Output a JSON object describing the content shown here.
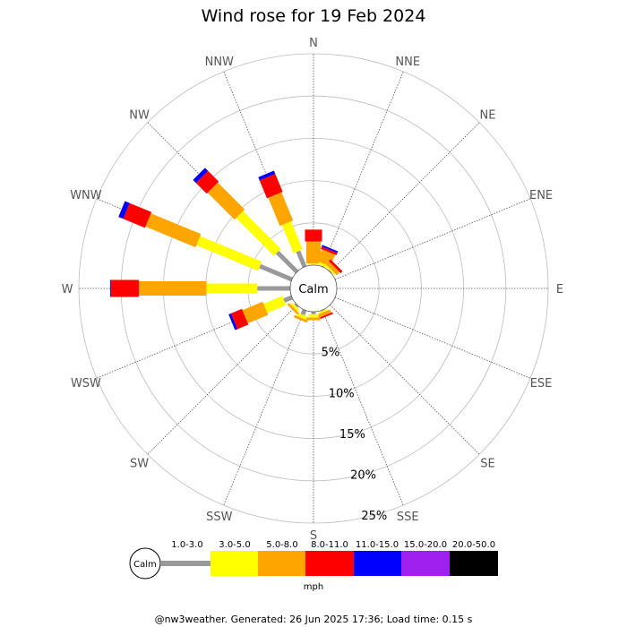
{
  "chart_data": {
    "type": "wind-rose",
    "title": "Wind rose for 19 Feb 2024",
    "center_label": "Calm",
    "directions": [
      "N",
      "NNE",
      "NE",
      "ENE",
      "E",
      "ESE",
      "SE",
      "SSE",
      "S",
      "SSW",
      "SW",
      "WSW",
      "W",
      "WNW",
      "NW",
      "NNW"
    ],
    "ring_labels": [
      "5%",
      "10%",
      "15%",
      "20%",
      "25%"
    ],
    "ring_values": [
      5,
      10,
      15,
      20,
      25
    ],
    "radial_max": 25,
    "speed_bins": [
      {
        "label": "1.0-3.0",
        "color": "#999999"
      },
      {
        "label": "3.0-5.0",
        "color": "#ffff00"
      },
      {
        "label": "5.0-8.0",
        "color": "#ffa500"
      },
      {
        "label": "8.0-11.0",
        "color": "#ff0000"
      },
      {
        "label": "11.0-15.0",
        "color": "#0000ff"
      },
      {
        "label": "15.0-20.0",
        "color": "#a020f0"
      },
      {
        "label": "20.0-50.0",
        "color": "#000000"
      }
    ],
    "unit": "mph",
    "series": [
      {
        "direction": "N",
        "values": [
          0.0,
          0.2,
          2.6,
          1.4,
          0,
          0,
          0
        ]
      },
      {
        "direction": "NNE",
        "values": [
          0.1,
          0.3,
          1.5,
          0.3,
          0.2,
          0,
          0
        ]
      },
      {
        "direction": "NE",
        "values": [
          0.1,
          0.2,
          0.5,
          0.3,
          0,
          0,
          0
        ]
      },
      {
        "direction": "SSE",
        "values": [
          0.1,
          0.2,
          0.4,
          0.2,
          0,
          0,
          0
        ]
      },
      {
        "direction": "S",
        "values": [
          0.3,
          0.4,
          0.3,
          0,
          0,
          0,
          0
        ]
      },
      {
        "direction": "SSW",
        "values": [
          0.6,
          0.4,
          0.3,
          0,
          0,
          0,
          0
        ]
      },
      {
        "direction": "SW",
        "values": [
          0.2,
          0.3,
          0.3,
          0,
          0,
          0,
          0
        ]
      },
      {
        "direction": "WSW",
        "values": [
          1.0,
          2.4,
          2.6,
          1.4,
          0.3,
          0,
          0
        ]
      },
      {
        "direction": "W",
        "values": [
          3.9,
          6.0,
          8.0,
          3.3,
          0.1,
          0,
          0
        ]
      },
      {
        "direction": "WNW",
        "values": [
          4.1,
          7.9,
          6.4,
          2.8,
          0.6,
          0,
          0
        ]
      },
      {
        "direction": "NW",
        "values": [
          3.3,
          6.3,
          4.5,
          1.8,
          0.5,
          0,
          0
        ]
      },
      {
        "direction": "NNW",
        "values": [
          2.0,
          3.6,
          3.6,
          2.3,
          0.4,
          0,
          0
        ]
      }
    ]
  },
  "footer": {
    "text": "@nw3weather. Generated: 26 Jun 2025 17:36; Load time: 0.15 s"
  }
}
